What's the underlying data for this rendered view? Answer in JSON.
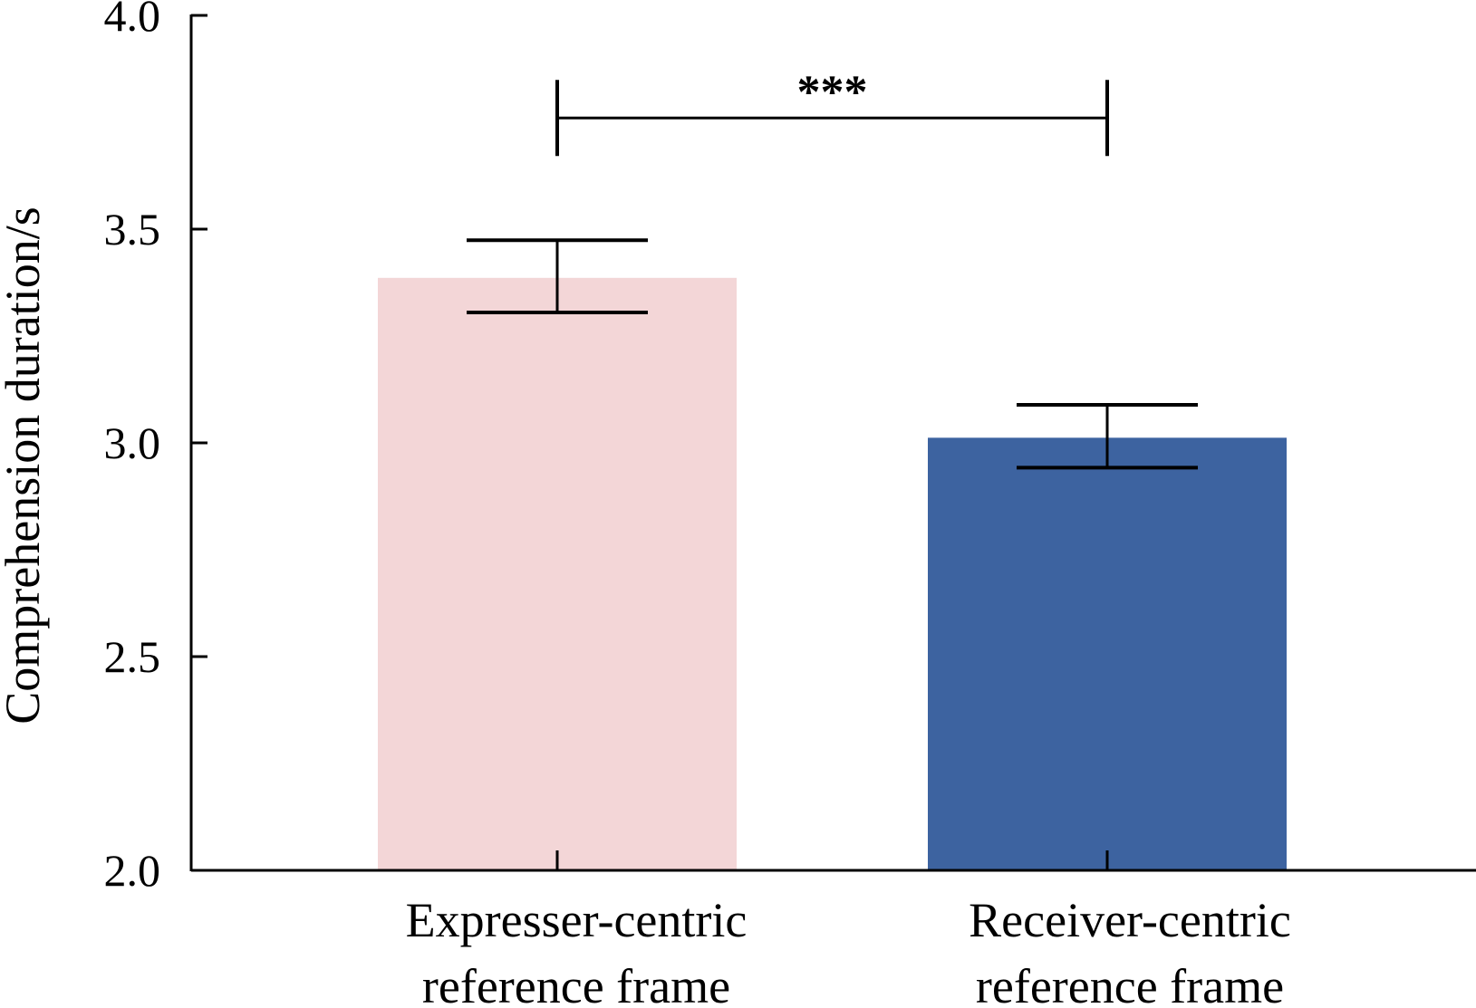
{
  "chart_data": {
    "type": "bar",
    "title": "",
    "xlabel": "",
    "ylabel": "Comprehension duration/s",
    "ylim": [
      2.0,
      4.0
    ],
    "yticks": [
      "2.0",
      "2.5",
      "3.0",
      "3.5",
      "4.0"
    ],
    "categories": [
      [
        "Expresser-centric",
        "reference frame"
      ],
      [
        "Receiver-centric",
        "reference frame"
      ]
    ],
    "values": [
      3.386,
      3.012
    ],
    "error_upper": [
      3.474,
      3.089
    ],
    "error_lower": [
      3.305,
      2.942
    ],
    "colors": [
      "#f3d6d7",
      "#3d63a0"
    ],
    "significance": {
      "label": "***",
      "between": [
        0,
        1
      ],
      "level": 3.76
    },
    "grid": false
  }
}
